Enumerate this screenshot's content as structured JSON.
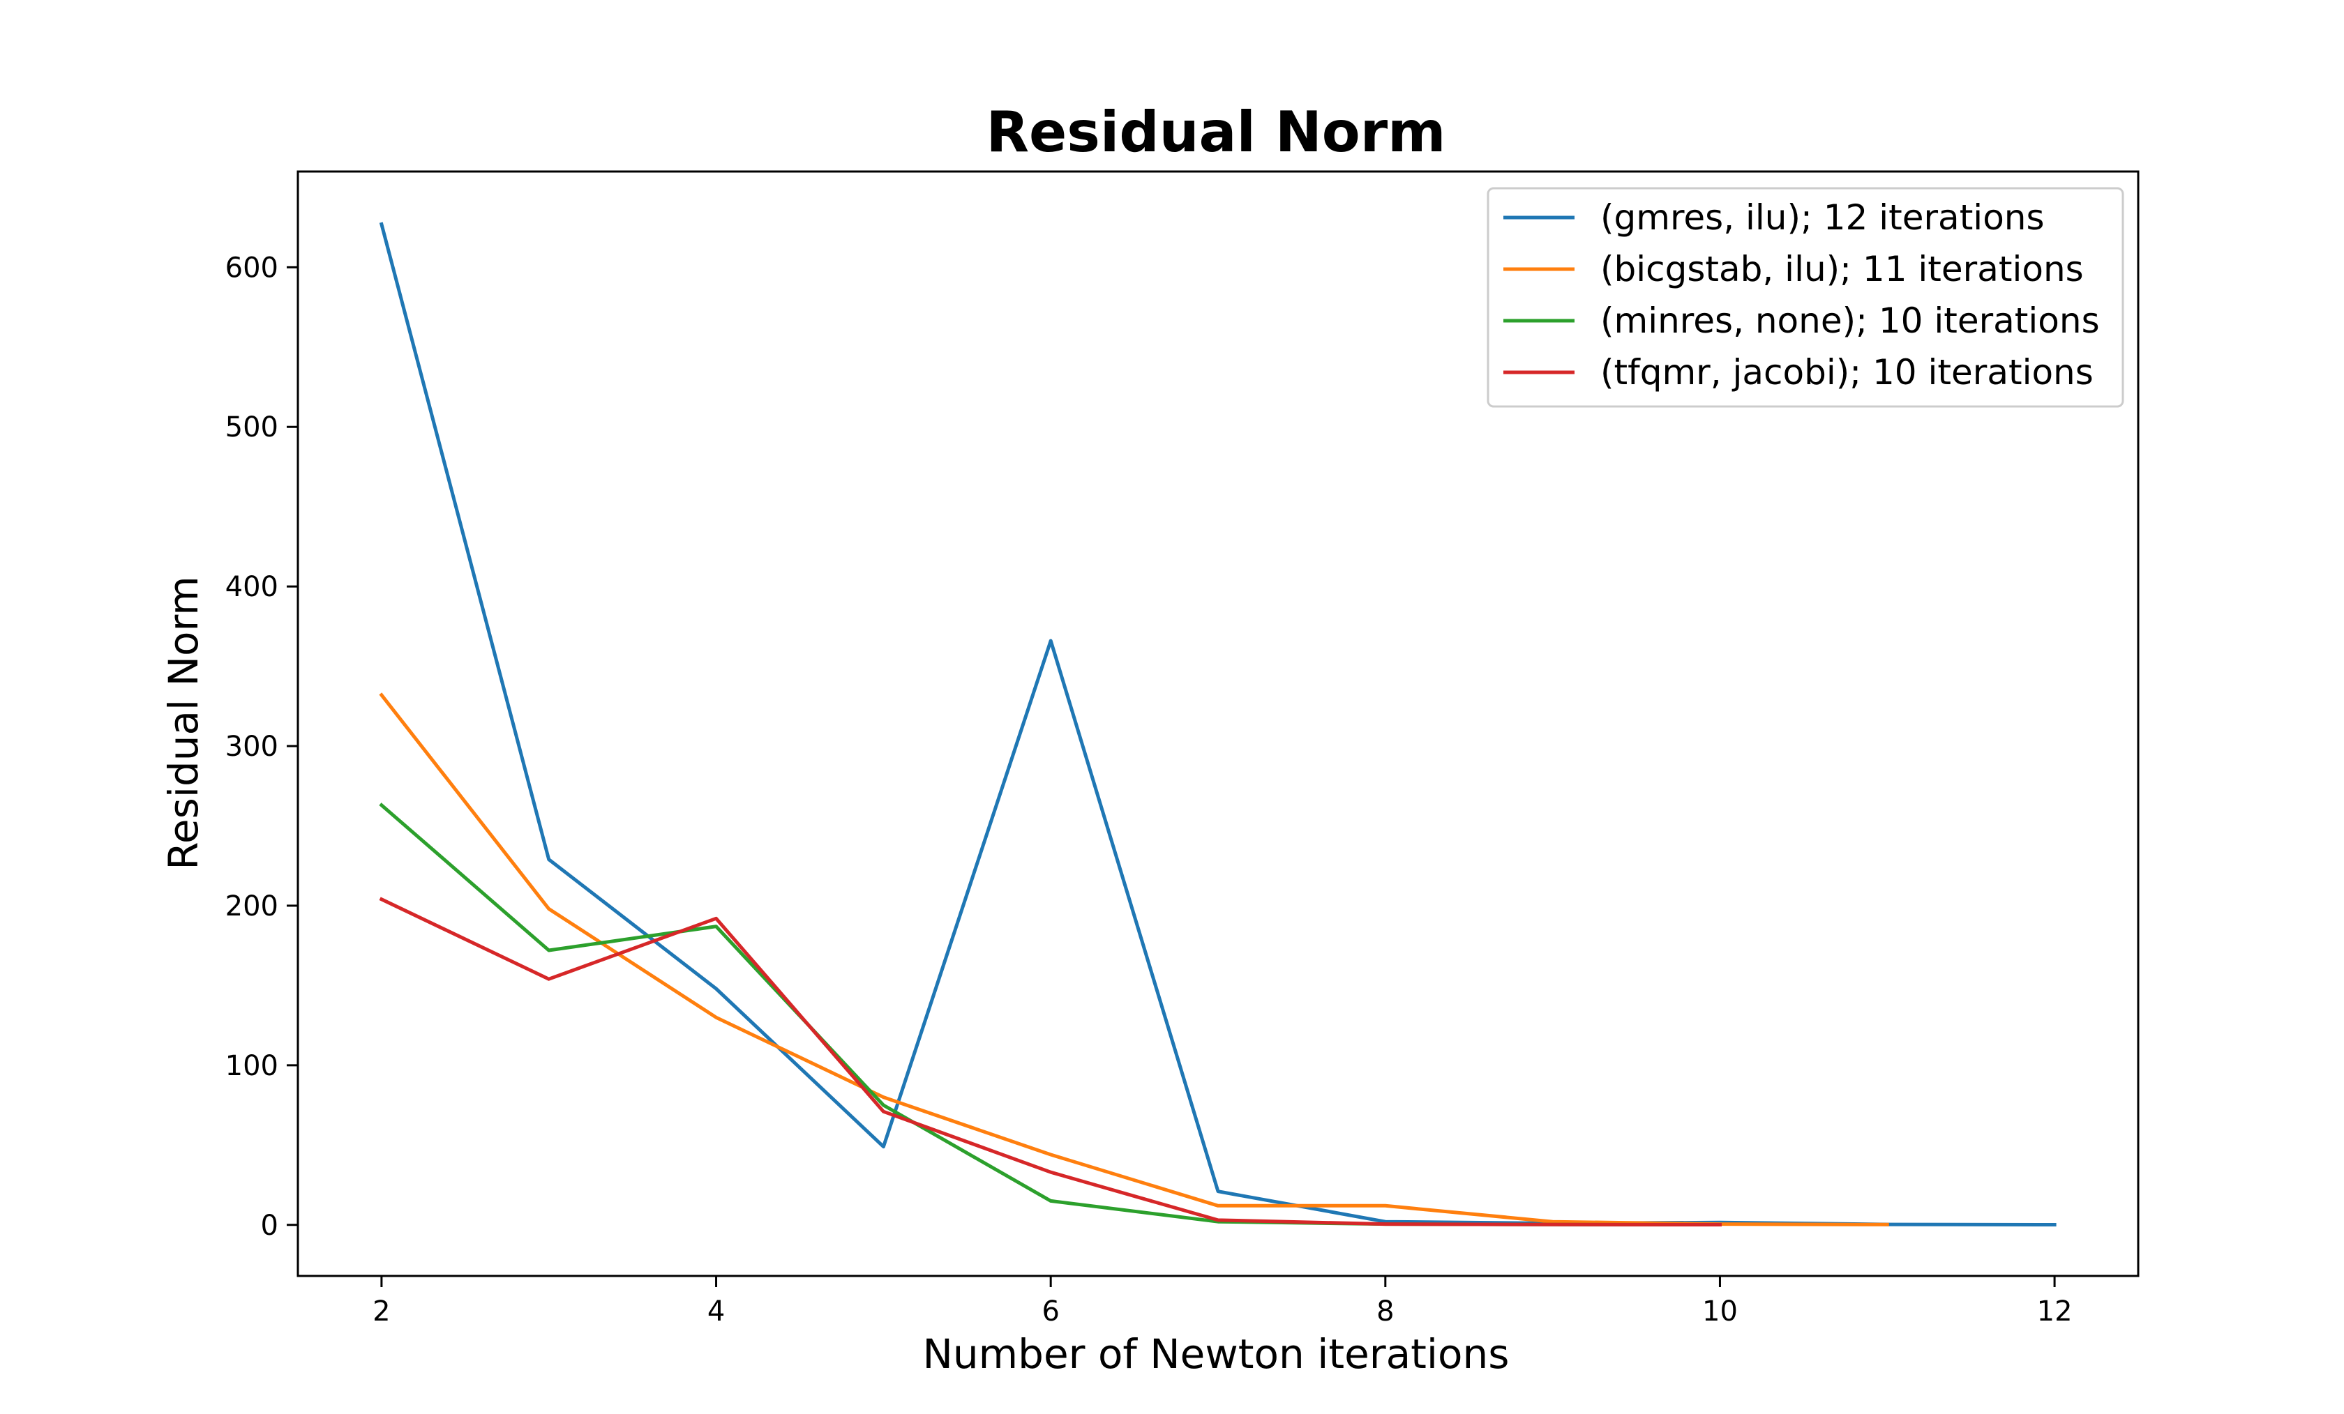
{
  "chart_data": {
    "type": "line",
    "title": "Residual Norm",
    "xlabel": "Number of Newton iterations",
    "ylabel": "Residual Norm",
    "xlim": [
      1.5,
      12.5
    ],
    "ylim": [
      -32,
      660
    ],
    "xticks": [
      2,
      4,
      6,
      8,
      10,
      12
    ],
    "yticks": [
      0,
      100,
      200,
      300,
      400,
      500,
      600
    ],
    "grid": false,
    "legend_position": "top-right",
    "series": [
      {
        "name": "(gmres, ilu); 12 iterations",
        "color": "#1f77b4",
        "x": [
          2,
          3,
          4,
          5,
          6,
          7,
          8,
          9,
          10,
          11,
          12
        ],
        "y": [
          627,
          229,
          148,
          49,
          366,
          21,
          2,
          1,
          1.5,
          0.3,
          0.1
        ]
      },
      {
        "name": "(bicgstab, ilu); 11 iterations",
        "color": "#ff7f0e",
        "x": [
          2,
          3,
          4,
          5,
          6,
          7,
          8,
          9,
          10,
          11
        ],
        "y": [
          332,
          198,
          130,
          80,
          44,
          12,
          12,
          2,
          0.5,
          0.2
        ]
      },
      {
        "name": "(minres, none); 10 iterations",
        "color": "#2ca02c",
        "x": [
          2,
          3,
          4,
          5,
          6,
          7,
          8,
          9,
          10
        ],
        "y": [
          263,
          172,
          187,
          75,
          15,
          2,
          0.5,
          0.2,
          0.1
        ]
      },
      {
        "name": "(tfqmr, jacobi); 10 iterations",
        "color": "#d62728",
        "x": [
          2,
          3,
          4,
          5,
          6,
          7,
          8,
          9,
          10
        ],
        "y": [
          204,
          154,
          192,
          71,
          33,
          3,
          0.5,
          0.2,
          0.1
        ]
      }
    ]
  }
}
